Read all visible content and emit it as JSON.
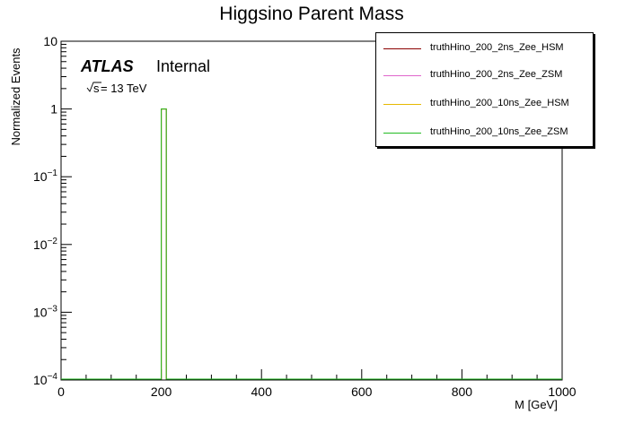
{
  "chart_data": {
    "type": "histogram",
    "title": "Higgsino Parent Mass",
    "xlabel": "M [GeV]",
    "ylabel": "Normalized Events",
    "xlim": [
      0,
      1000
    ],
    "ylim": [
      0.0001,
      10
    ],
    "yscale": "log",
    "grid": false,
    "x_ticks": [
      "0",
      "200",
      "400",
      "600",
      "800",
      "1000"
    ],
    "y_ticks": [
      {
        "base": "10",
        "exp": "-4"
      },
      {
        "base": "10",
        "exp": "-3"
      },
      {
        "base": "10",
        "exp": "-2"
      },
      {
        "base": "10",
        "exp": "-1"
      },
      {
        "base": "1",
        "exp": ""
      },
      {
        "base": "10",
        "exp": ""
      }
    ],
    "annotations": {
      "experiment": "ATLAS",
      "status": "Internal",
      "energy_sqrt": "s",
      "energy_rest": " = 13 TeV"
    },
    "legend_position": "top-right",
    "series": [
      {
        "name": "truthHino_200_2ns_Zee_HSM",
        "color": "#8b0000",
        "bins": [
          {
            "x0": 200,
            "x1": 210,
            "y": 1.0
          }
        ]
      },
      {
        "name": "truthHino_200_2ns_Zee_ZSM",
        "color": "#e066cc",
        "bins": [
          {
            "x0": 200,
            "x1": 210,
            "y": 1.0
          }
        ]
      },
      {
        "name": "truthHino_200_10ns_Zee_HSM",
        "color": "#e6b800",
        "bins": [
          {
            "x0": 200,
            "x1": 210,
            "y": 1.0
          }
        ]
      },
      {
        "name": "truthHino_200_10ns_Zee_ZSM",
        "color": "#22bb22",
        "bins": [
          {
            "x0": 200,
            "x1": 210,
            "y": 1.0
          }
        ]
      }
    ]
  }
}
